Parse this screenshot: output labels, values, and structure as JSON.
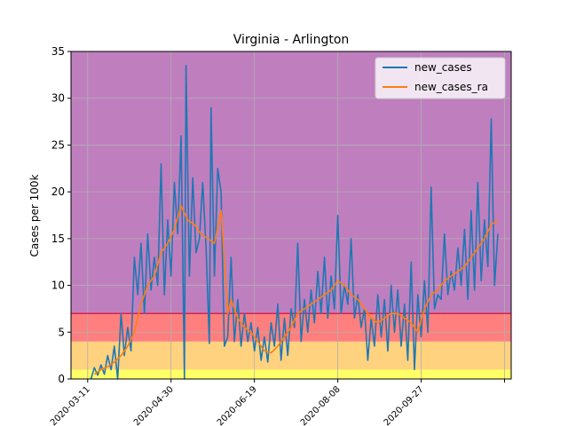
{
  "chart_data": {
    "type": "line",
    "title": "Virginia - Arlington",
    "ylabel": "Cases per 100k",
    "xlabel": "",
    "ylim": [
      0,
      35
    ],
    "yticks": [
      0,
      5,
      10,
      15,
      20,
      25,
      30,
      35
    ],
    "x_start": "2020-03-01",
    "x_end": "2020-11-20",
    "xticks": [
      "2020-03-11",
      "2020-04-30",
      "2020-06-19",
      "2020-08-08",
      "2020-09-27",
      "2020-11-16"
    ],
    "xtick_labels": [
      "2020-03-11",
      "2020-04-30",
      "2020-06-19",
      "2020-08-08",
      "2020-09-27",
      ""
    ],
    "grid": true,
    "legend_position": "top-right",
    "risk_bands": [
      {
        "from": 0,
        "to": 1,
        "color": "#ffff66"
      },
      {
        "from": 1,
        "to": 4,
        "color": "#ffd27f"
      },
      {
        "from": 4,
        "to": 7,
        "color": "#ff7f7f"
      },
      {
        "from": 7,
        "to": 35,
        "color": "#bf7fbf"
      }
    ],
    "threshold_line": {
      "y": 7,
      "color": "#dd2244"
    },
    "series": [
      {
        "name": "new_cases",
        "color": "#1f77b4",
        "points": [
          [
            "2020-03-13",
            0.0
          ],
          [
            "2020-03-15",
            1.2
          ],
          [
            "2020-03-17",
            0.4
          ],
          [
            "2020-03-19",
            1.5
          ],
          [
            "2020-03-21",
            0.5
          ],
          [
            "2020-03-23",
            2.5
          ],
          [
            "2020-03-25",
            1.0
          ],
          [
            "2020-03-27",
            3.5
          ],
          [
            "2020-03-29",
            0.0
          ],
          [
            "2020-03-31",
            7.0
          ],
          [
            "2020-04-02",
            2.5
          ],
          [
            "2020-04-04",
            5.5
          ],
          [
            "2020-04-06",
            3.0
          ],
          [
            "2020-04-08",
            13.0
          ],
          [
            "2020-04-10",
            9.0
          ],
          [
            "2020-04-12",
            14.5
          ],
          [
            "2020-04-14",
            7.0
          ],
          [
            "2020-04-16",
            15.5
          ],
          [
            "2020-04-18",
            9.5
          ],
          [
            "2020-04-20",
            13.0
          ],
          [
            "2020-04-22",
            10.0
          ],
          [
            "2020-04-24",
            23.0
          ],
          [
            "2020-04-26",
            9.0
          ],
          [
            "2020-04-28",
            17.0
          ],
          [
            "2020-04-30",
            11.0
          ],
          [
            "2020-05-02",
            21.0
          ],
          [
            "2020-05-04",
            15.5
          ],
          [
            "2020-05-06",
            26.0
          ],
          [
            "2020-05-08",
            0.0
          ],
          [
            "2020-05-09",
            33.5
          ],
          [
            "2020-05-11",
            11.0
          ],
          [
            "2020-05-13",
            21.5
          ],
          [
            "2020-05-15",
            13.5
          ],
          [
            "2020-05-17",
            15.0
          ],
          [
            "2020-05-19",
            21.0
          ],
          [
            "2020-05-21",
            14.0
          ],
          [
            "2020-05-23",
            3.8
          ],
          [
            "2020-05-24",
            29.0
          ],
          [
            "2020-05-26",
            11.0
          ],
          [
            "2020-05-28",
            22.5
          ],
          [
            "2020-05-30",
            20.0
          ],
          [
            "2020-06-01",
            3.5
          ],
          [
            "2020-06-03",
            4.5
          ],
          [
            "2020-06-05",
            13.0
          ],
          [
            "2020-06-07",
            4.0
          ],
          [
            "2020-06-09",
            8.5
          ],
          [
            "2020-06-11",
            3.5
          ],
          [
            "2020-06-13",
            7.0
          ],
          [
            "2020-06-15",
            4.0
          ],
          [
            "2020-06-17",
            6.0
          ],
          [
            "2020-06-19",
            3.0
          ],
          [
            "2020-06-21",
            5.5
          ],
          [
            "2020-06-23",
            2.0
          ],
          [
            "2020-06-25",
            4.5
          ],
          [
            "2020-06-27",
            1.8
          ],
          [
            "2020-06-29",
            6.0
          ],
          [
            "2020-07-01",
            3.5
          ],
          [
            "2020-07-03",
            8.0
          ],
          [
            "2020-07-05",
            2.0
          ],
          [
            "2020-07-07",
            6.5
          ],
          [
            "2020-07-09",
            2.5
          ],
          [
            "2020-07-11",
            7.5
          ],
          [
            "2020-07-13",
            5.5
          ],
          [
            "2020-07-15",
            14.5
          ],
          [
            "2020-07-17",
            4.0
          ],
          [
            "2020-07-19",
            8.5
          ],
          [
            "2020-07-21",
            5.0
          ],
          [
            "2020-07-23",
            9.5
          ],
          [
            "2020-07-25",
            6.0
          ],
          [
            "2020-07-27",
            11.5
          ],
          [
            "2020-07-29",
            7.0
          ],
          [
            "2020-07-31",
            13.0
          ],
          [
            "2020-08-02",
            6.5
          ],
          [
            "2020-08-04",
            11.0
          ],
          [
            "2020-08-06",
            7.5
          ],
          [
            "2020-08-08",
            17.5
          ],
          [
            "2020-08-10",
            7.0
          ],
          [
            "2020-08-12",
            10.0
          ],
          [
            "2020-08-14",
            8.0
          ],
          [
            "2020-08-16",
            15.0
          ],
          [
            "2020-08-18",
            6.5
          ],
          [
            "2020-08-20",
            9.0
          ],
          [
            "2020-08-22",
            5.5
          ],
          [
            "2020-08-24",
            7.5
          ],
          [
            "2020-08-26",
            2.0
          ],
          [
            "2020-08-28",
            6.5
          ],
          [
            "2020-08-30",
            3.5
          ],
          [
            "2020-09-01",
            9.0
          ],
          [
            "2020-09-03",
            4.5
          ],
          [
            "2020-09-05",
            8.5
          ],
          [
            "2020-09-07",
            3.0
          ],
          [
            "2020-09-09",
            10.0
          ],
          [
            "2020-09-11",
            5.0
          ],
          [
            "2020-09-13",
            9.5
          ],
          [
            "2020-09-15",
            3.5
          ],
          [
            "2020-09-17",
            8.0
          ],
          [
            "2020-09-19",
            2.0
          ],
          [
            "2020-09-21",
            12.5
          ],
          [
            "2020-09-23",
            1.0
          ],
          [
            "2020-09-25",
            9.0
          ],
          [
            "2020-09-27",
            4.5
          ],
          [
            "2020-09-29",
            10.5
          ],
          [
            "2020-10-01",
            5.0
          ],
          [
            "2020-10-03",
            20.5
          ],
          [
            "2020-10-05",
            7.5
          ],
          [
            "2020-10-07",
            9.0
          ],
          [
            "2020-10-09",
            8.5
          ],
          [
            "2020-10-11",
            15.5
          ],
          [
            "2020-10-13",
            9.0
          ],
          [
            "2020-10-15",
            11.5
          ],
          [
            "2020-10-17",
            9.5
          ],
          [
            "2020-10-19",
            14.0
          ],
          [
            "2020-10-21",
            10.0
          ],
          [
            "2020-10-23",
            16.0
          ],
          [
            "2020-10-25",
            8.5
          ],
          [
            "2020-10-27",
            18.0
          ],
          [
            "2020-10-29",
            9.5
          ],
          [
            "2020-10-31",
            21.0
          ],
          [
            "2020-11-02",
            10.5
          ],
          [
            "2020-11-04",
            17.0
          ],
          [
            "2020-11-06",
            12.0
          ],
          [
            "2020-11-08",
            27.8
          ],
          [
            "2020-11-10",
            10.0
          ],
          [
            "2020-11-12",
            15.5
          ]
        ]
      },
      {
        "name": "new_cases_ra",
        "color": "#ff7f0e",
        "points": [
          [
            "2020-03-15",
            0.5
          ],
          [
            "2020-03-19",
            1.0
          ],
          [
            "2020-03-23",
            1.3
          ],
          [
            "2020-03-27",
            1.8
          ],
          [
            "2020-03-31",
            2.5
          ],
          [
            "2020-04-04",
            3.5
          ],
          [
            "2020-04-08",
            5.0
          ],
          [
            "2020-04-12",
            8.0
          ],
          [
            "2020-04-16",
            10.0
          ],
          [
            "2020-04-20",
            11.0
          ],
          [
            "2020-04-24",
            13.5
          ],
          [
            "2020-04-28",
            14.5
          ],
          [
            "2020-05-02",
            16.0
          ],
          [
            "2020-05-06",
            18.5
          ],
          [
            "2020-05-10",
            17.0
          ],
          [
            "2020-05-14",
            16.5
          ],
          [
            "2020-05-18",
            15.5
          ],
          [
            "2020-05-22",
            15.0
          ],
          [
            "2020-05-26",
            14.5
          ],
          [
            "2020-05-30",
            18.0
          ],
          [
            "2020-06-03",
            7.0
          ],
          [
            "2020-06-05",
            8.5
          ],
          [
            "2020-06-09",
            6.5
          ],
          [
            "2020-06-13",
            5.5
          ],
          [
            "2020-06-17",
            5.0
          ],
          [
            "2020-06-21",
            4.0
          ],
          [
            "2020-06-25",
            3.0
          ],
          [
            "2020-06-29",
            2.8
          ],
          [
            "2020-07-03",
            3.5
          ],
          [
            "2020-07-07",
            4.5
          ],
          [
            "2020-07-11",
            5.5
          ],
          [
            "2020-07-15",
            7.0
          ],
          [
            "2020-07-19",
            7.5
          ],
          [
            "2020-07-23",
            8.0
          ],
          [
            "2020-07-27",
            8.5
          ],
          [
            "2020-07-31",
            9.0
          ],
          [
            "2020-08-04",
            9.5
          ],
          [
            "2020-08-08",
            10.5
          ],
          [
            "2020-08-12",
            10.0
          ],
          [
            "2020-08-16",
            9.0
          ],
          [
            "2020-08-20",
            8.5
          ],
          [
            "2020-08-24",
            7.5
          ],
          [
            "2020-08-28",
            6.5
          ],
          [
            "2020-09-01",
            6.0
          ],
          [
            "2020-09-05",
            6.5
          ],
          [
            "2020-09-09",
            7.0
          ],
          [
            "2020-09-13",
            7.0
          ],
          [
            "2020-09-17",
            6.5
          ],
          [
            "2020-09-21",
            6.0
          ],
          [
            "2020-09-25",
            5.0
          ],
          [
            "2020-09-29",
            7.5
          ],
          [
            "2020-10-03",
            9.0
          ],
          [
            "2020-10-07",
            9.5
          ],
          [
            "2020-10-11",
            10.5
          ],
          [
            "2020-10-15",
            11.0
          ],
          [
            "2020-10-19",
            11.5
          ],
          [
            "2020-10-23",
            12.0
          ],
          [
            "2020-10-27",
            13.0
          ],
          [
            "2020-10-31",
            14.0
          ],
          [
            "2020-11-04",
            15.0
          ],
          [
            "2020-11-08",
            16.5
          ],
          [
            "2020-11-12",
            17.0
          ]
        ]
      }
    ]
  }
}
